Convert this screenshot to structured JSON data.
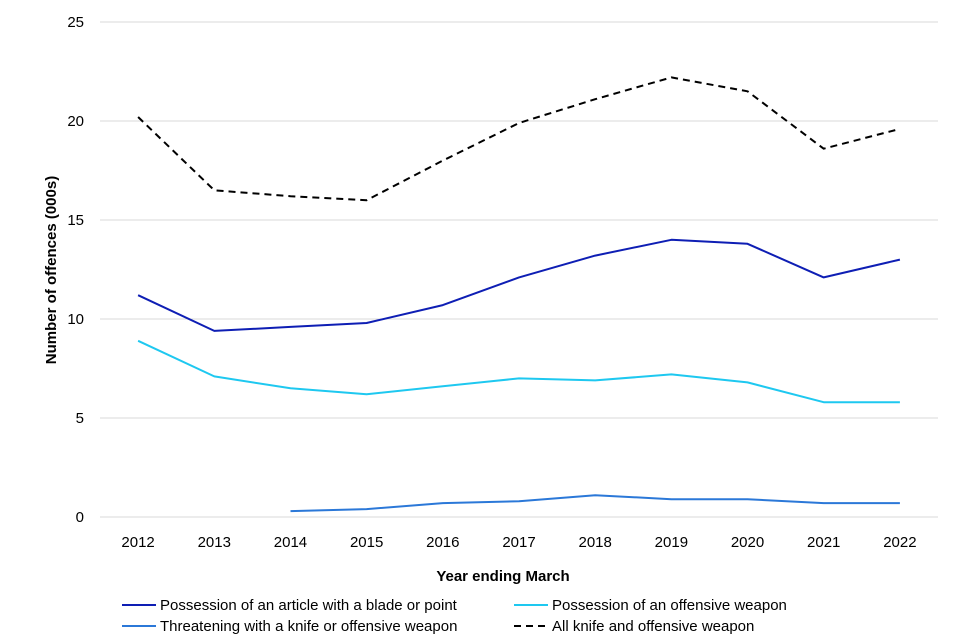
{
  "chart_data": {
    "type": "line",
    "title": "",
    "xlabel": "Year ending March",
    "ylabel": "Number of offences (000s)",
    "ylim": [
      0,
      25
    ],
    "yticks": [
      "0",
      "5",
      "10",
      "15",
      "20",
      "25"
    ],
    "categories": [
      "2012",
      "2013",
      "2014",
      "2015",
      "2016",
      "2017",
      "2018",
      "2019",
      "2020",
      "2021",
      "2022"
    ],
    "grid": true,
    "legend_position": "bottom",
    "series": [
      {
        "name": "Possession of an article with a blade or point",
        "color": "#0e1eb4",
        "dash": "solid",
        "values": [
          11.2,
          9.4,
          9.6,
          9.8,
          10.7,
          12.1,
          13.2,
          14.0,
          13.8,
          12.1,
          13.0
        ]
      },
      {
        "name": "Possession of an offensive weapon",
        "color": "#1ec8f0",
        "dash": "solid",
        "values": [
          8.9,
          7.1,
          6.5,
          6.2,
          6.6,
          7.0,
          6.9,
          7.2,
          6.8,
          5.8,
          5.8
        ]
      },
      {
        "name": "Threatening with a knife or offensive weapon",
        "color": "#2b78d8",
        "dash": "solid",
        "values": [
          null,
          null,
          0.3,
          0.4,
          0.7,
          0.8,
          1.1,
          0.9,
          0.9,
          0.7,
          0.7
        ]
      },
      {
        "name": "All knife and offensive weapon",
        "color": "#000000",
        "dash": "dashed",
        "values": [
          20.2,
          16.5,
          16.2,
          16.0,
          18.0,
          19.9,
          21.1,
          22.2,
          21.5,
          18.6,
          19.6
        ]
      }
    ]
  }
}
